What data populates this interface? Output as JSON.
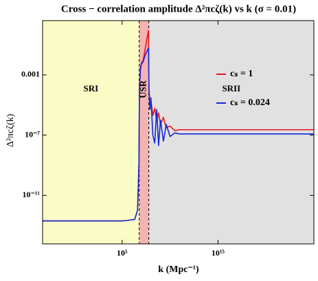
{
  "chart_data": {
    "type": "line",
    "title": "Cross − correlation amplitude Δ²πcζ(k) vs k (σ = 0.01)",
    "xlabel": "k (Mpc⁻¹)",
    "ylabel": "Δ²πcζ(k)",
    "xscale": "log",
    "yscale": "log",
    "xlim": [
      0.0005,
      1e+25
    ],
    "ylim": [
      6e-15,
      4
    ],
    "xticks": [
      {
        "value": 100000.0,
        "label": "10⁵"
      },
      {
        "value": 1000000000000000.0,
        "label": "10¹⁵"
      }
    ],
    "yticks": [
      0.001,
      {
        "value": 1e-07,
        "label": "10⁻⁷"
      },
      {
        "value": 1e-11,
        "label": "10⁻¹¹"
      }
    ],
    "legend": "upper right",
    "regions": [
      {
        "label": "SRI",
        "from": 0.0005,
        "to": 6000000.0,
        "color": "#fbfbc6"
      },
      {
        "label": "USR",
        "from": 6000000.0,
        "to": 60000000.0,
        "color": "#f4b3b3"
      },
      {
        "label": "SRII",
        "from": 60000000.0,
        "to": 1e+25,
        "color": "#e1e1e1"
      }
    ],
    "x": [
      0.0005,
      100000.0,
      2000000.0,
      4000000.0,
      5600000.0,
      6300000.0,
      8000000.0,
      10000000.0,
      16000000.0,
      25000000.0,
      40000000.0,
      56000000.0,
      63000000.0,
      80000000.0,
      100000000.0,
      160000000.0,
      250000000.0,
      400000000.0,
      630000000.0,
      1000000000.0,
      2000000000.0,
      4000000000.0,
      10000000000.0,
      30000000000.0,
      100000000000.0,
      1e+25
    ],
    "series": [
      {
        "name": "cₛ = 1",
        "color": "#e8141b",
        "values": [
          2e-13,
          2e-13,
          2.5e-13,
          1e-12,
          1e-09,
          0.0001,
          0.003,
          0.006,
          0.01,
          0.05,
          0.3,
          0.9,
          0.0001,
          1e-05,
          2e-05,
          2e-06,
          6e-06,
          8e-07,
          3e-06,
          5e-07,
          1.5e-06,
          3e-07,
          4e-07,
          2e-07,
          2.3e-07,
          2.3e-07
        ]
      },
      {
        "name": "cₛ = 0.024",
        "color": "#1428d8",
        "values": [
          2e-13,
          2e-13,
          2.5e-13,
          1e-12,
          1e-09,
          0.0001,
          0.002,
          0.005,
          0.008,
          0.02,
          0.04,
          0.06,
          0.0001,
          5e-06,
          3e-05,
          1e-07,
          3e-08,
          5e-06,
          2e-08,
          1e-06,
          4e-08,
          5e-07,
          8e-08,
          1.4e-07,
          1.2e-07,
          1.2e-07
        ]
      }
    ]
  }
}
